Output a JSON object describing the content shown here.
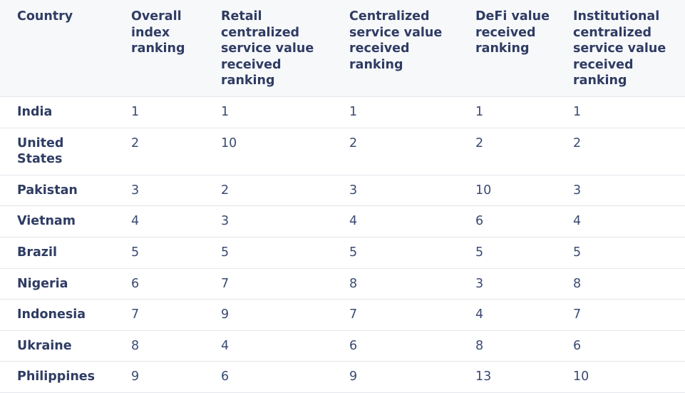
{
  "table": {
    "headers": [
      "Country",
      "Overall index ranking",
      "Retail centralized service value received ranking",
      "Centralized service value received ranking",
      "DeFi value received ranking",
      "Institutional centralized service value received ranking"
    ],
    "rows": [
      [
        "India",
        "1",
        "1",
        "1",
        "1",
        "1"
      ],
      [
        "United States",
        "2",
        "10",
        "2",
        "2",
        "2"
      ],
      [
        "Pakistan",
        "3",
        "2",
        "3",
        "10",
        "3"
      ],
      [
        "Vietnam",
        "4",
        "3",
        "4",
        "6",
        "4"
      ],
      [
        "Brazil",
        "5",
        "5",
        "5",
        "5",
        "5"
      ],
      [
        "Nigeria",
        "6",
        "7",
        "8",
        "3",
        "8"
      ],
      [
        "Indonesia",
        "7",
        "9",
        "7",
        "4",
        "7"
      ],
      [
        "Ukraine",
        "8",
        "4",
        "6",
        "8",
        "6"
      ],
      [
        "Philippines",
        "9",
        "6",
        "9",
        "13",
        "10"
      ]
    ]
  }
}
